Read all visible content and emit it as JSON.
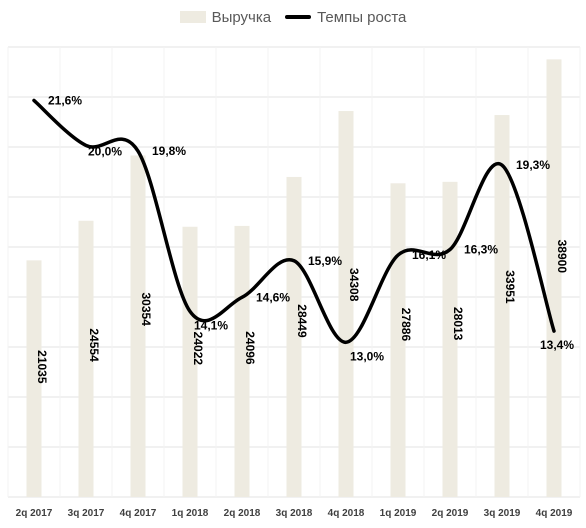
{
  "chart_data": {
    "type": "bar",
    "categories": [
      "2q 2017",
      "3q 2017",
      "4q 2017",
      "1q 2018",
      "2q 2018",
      "3q 2018",
      "4q 2018",
      "1q 2019",
      "2q 2019",
      "3q 2019",
      "4q 2019"
    ],
    "series": [
      {
        "name": "Выручка",
        "kind": "bar",
        "values": [
          21035,
          24554,
          30354,
          24022,
          24096,
          28449,
          34308,
          27886,
          28013,
          33951,
          38900
        ],
        "labels": [
          "21035",
          "24554",
          "30354",
          "24022",
          "24096",
          "28449",
          "34308",
          "27886",
          "28013",
          "33951",
          "38900"
        ]
      },
      {
        "name": "Темпы роста",
        "kind": "line",
        "values": [
          21.6,
          20.0,
          19.8,
          14.1,
          14.6,
          15.9,
          13.0,
          16.1,
          16.3,
          19.3,
          13.4
        ],
        "labels": [
          "21,6%",
          "20,0%",
          "19,8%",
          "14,1%",
          "14,6%",
          "15,9%",
          "13,0%",
          "16,1%",
          "16,3%",
          "19,3%",
          "13,4%"
        ]
      }
    ],
    "bar_ylim": [
      0,
      40000
    ],
    "line_ylim": [
      7.5,
      23.5
    ],
    "grid": true,
    "legend": "top-center",
    "colors": {
      "bar": "#eeebe1",
      "line": "#000000",
      "grid": "#e3e3e3"
    }
  }
}
